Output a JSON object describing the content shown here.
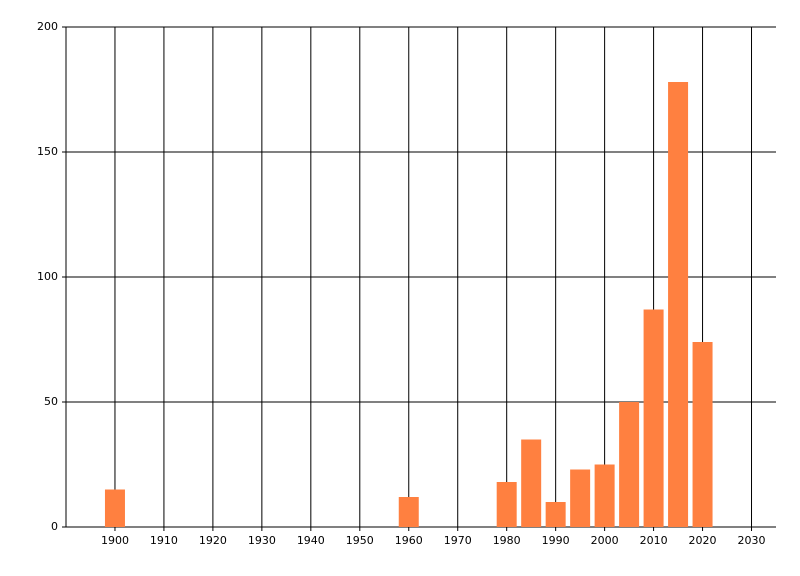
{
  "chart_data": {
    "type": "bar",
    "x": [
      1900,
      1960,
      1980,
      1985,
      1990,
      1995,
      2000,
      2005,
      2010,
      2015,
      2020
    ],
    "values": [
      15,
      12,
      18,
      35,
      10,
      23,
      25,
      50,
      87,
      178,
      74
    ],
    "color": "#ff8040",
    "xlim": [
      1890,
      2035
    ],
    "xticks": [
      1900,
      1910,
      1920,
      1930,
      1940,
      1950,
      1960,
      1970,
      1980,
      1990,
      2000,
      2010,
      2020,
      2030
    ],
    "ylim": [
      0,
      200
    ],
    "yticks": [
      0,
      50,
      100,
      150,
      200
    ],
    "grid": true
  }
}
